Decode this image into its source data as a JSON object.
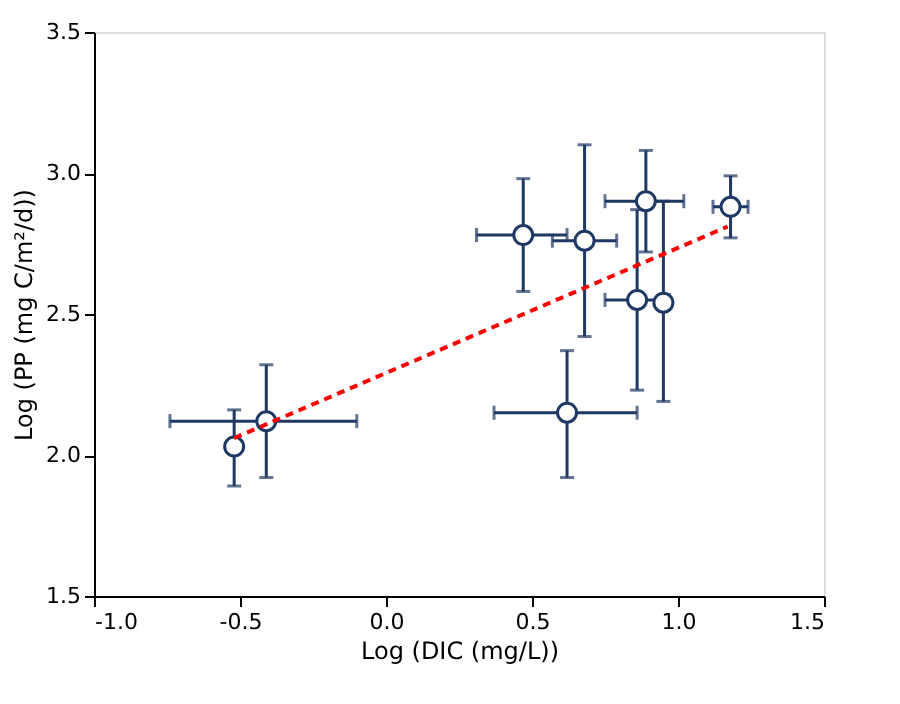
{
  "chart_data": {
    "type": "scatter",
    "xlabel": "Log (DIC (mg/L))",
    "ylabel": "Log (PP (mg C/m²/d))",
    "xlim": [
      -1.0,
      1.5
    ],
    "xticks": [
      {
        "value": -1.0,
        "label": "-1.0"
      },
      {
        "value": -0.5,
        "label": "-0.5"
      },
      {
        "value": 0,
        "label": "0.0"
      },
      {
        "value": 0.5,
        "label": "0.5"
      },
      {
        "value": 1.0,
        "label": "1.0"
      },
      {
        "value": 1.5,
        "label": "1.5"
      }
    ],
    "ylim": [
      1.5,
      3.5
    ],
    "yticks": [
      {
        "value": 1.5,
        "label": "1.5"
      },
      {
        "value": 2.0,
        "label": "2.0"
      },
      {
        "value": 2.5,
        "label": "2.5"
      },
      {
        "value": 3.0,
        "label": "3.0"
      },
      {
        "value": 3.5,
        "label": "3.5"
      }
    ],
    "grid": false,
    "series": [
      {
        "color": "#1f3864",
        "marker": "circle",
        "x": [
          -0.52,
          -0.41,
          0.47,
          0.68,
          0.89,
          1.18,
          0.86,
          0.95,
          0.62
        ],
        "values": [
          2.03,
          2.12,
          2.78,
          2.76,
          2.9,
          2.88,
          2.55,
          2.54,
          2.15
        ],
        "errors": [
          [
            1.89,
            2.16
          ],
          [
            1.92,
            2.32
          ],
          [
            2.58,
            2.98
          ],
          [
            2.42,
            3.1
          ],
          [
            2.72,
            3.08
          ],
          [
            2.77,
            2.99
          ],
          [
            2.23,
            2.87
          ],
          [
            2.19,
            2.9
          ],
          [
            1.92,
            2.37
          ]
        ],
        "xerrors": [
          null,
          [
            -0.74,
            -0.1
          ],
          [
            0.31,
            0.62
          ],
          [
            0.57,
            0.79
          ],
          [
            0.75,
            1.02
          ],
          [
            1.12,
            1.24
          ],
          [
            0.75,
            0.97
          ],
          null,
          [
            0.37,
            0.86
          ]
        ]
      },
      {
        "type": "line",
        "color": "#ff0000",
        "line_style": "dashed",
        "x": [
          -0.52,
          1.17
        ],
        "values": [
          2.06,
          2.81
        ]
      }
    ]
  }
}
